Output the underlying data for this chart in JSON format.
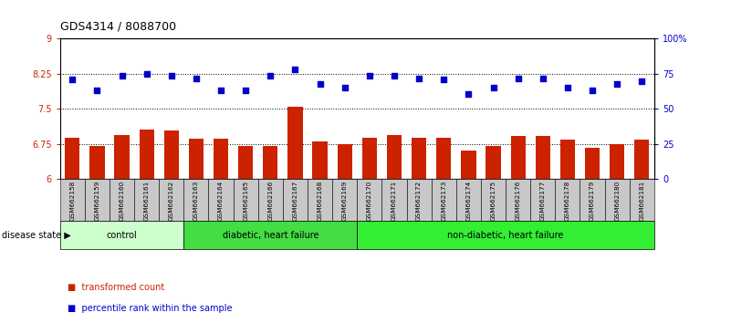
{
  "title": "GDS4314 / 8088700",
  "categories": [
    "GSM662158",
    "GSM662159",
    "GSM662160",
    "GSM662161",
    "GSM662162",
    "GSM662163",
    "GSM662164",
    "GSM662165",
    "GSM662166",
    "GSM662167",
    "GSM662168",
    "GSM662169",
    "GSM662170",
    "GSM662171",
    "GSM662172",
    "GSM662173",
    "GSM662174",
    "GSM662175",
    "GSM662176",
    "GSM662177",
    "GSM662178",
    "GSM662179",
    "GSM662180",
    "GSM662181"
  ],
  "bar_values": [
    6.88,
    6.72,
    6.94,
    7.06,
    7.04,
    6.86,
    6.86,
    6.72,
    6.72,
    7.55,
    6.81,
    6.74,
    6.88,
    6.94,
    6.88,
    6.88,
    6.62,
    6.72,
    6.92,
    6.92,
    6.84,
    6.68,
    6.74,
    6.84
  ],
  "scatter_values": [
    71,
    63,
    74,
    75,
    74,
    72,
    63,
    63,
    74,
    78,
    68,
    65,
    74,
    74,
    72,
    71,
    61,
    65,
    72,
    72,
    65,
    63,
    68,
    70
  ],
  "ylim_left": [
    6,
    9
  ],
  "ylim_right": [
    0,
    100
  ],
  "yticks_left": [
    6,
    6.75,
    7.5,
    8.25,
    9
  ],
  "yticks_right": [
    0,
    25,
    50,
    75,
    100
  ],
  "ytick_labels_left": [
    "6",
    "6.75",
    "7.5",
    "8.25",
    "9"
  ],
  "ytick_labels_right": [
    "0",
    "25",
    "50",
    "75",
    "100%"
  ],
  "bar_color": "#cc2200",
  "scatter_color": "#0000cc",
  "bg_color": "#ffffff",
  "tick_bg_color": "#c8c8c8",
  "groups": [
    {
      "label": "control",
      "start": 0,
      "end": 5,
      "color": "#ccffcc"
    },
    {
      "label": "diabetic, heart failure",
      "start": 5,
      "end": 12,
      "color": "#44dd44"
    },
    {
      "label": "non-diabetic, heart failure",
      "start": 12,
      "end": 24,
      "color": "#33ee33"
    }
  ],
  "disease_state_label": "disease state",
  "legend_items": [
    {
      "label": "transformed count",
      "color": "#cc2200"
    },
    {
      "label": "percentile rank within the sample",
      "color": "#0000cc"
    }
  ]
}
